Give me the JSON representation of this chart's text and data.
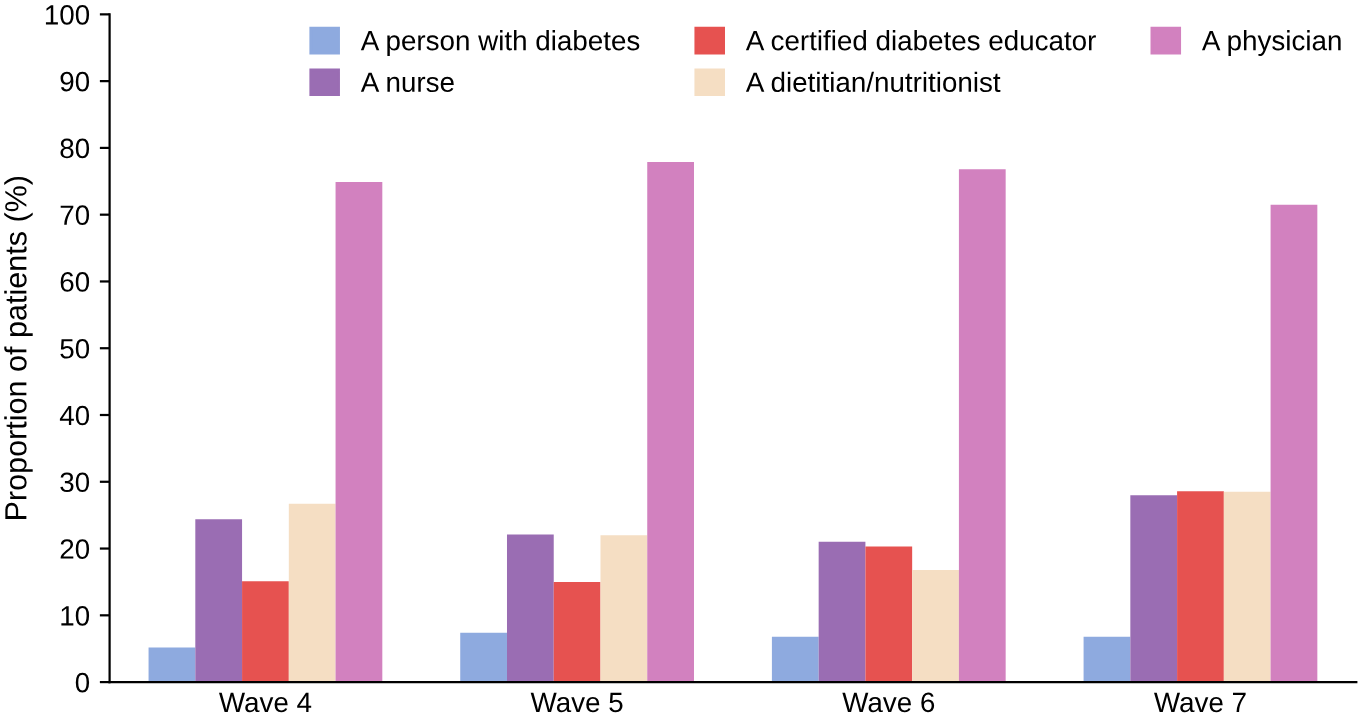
{
  "chart_data": {
    "type": "bar",
    "ylabel": "Proportion of patients (%)",
    "categories": [
      "Wave 4",
      "Wave 5",
      "Wave 6",
      "Wave 7"
    ],
    "series": [
      {
        "name": "A person with diabetes",
        "color": "#8eaadf",
        "values": [
          5.2,
          7.4,
          6.8,
          6.8
        ]
      },
      {
        "name": "A nurse",
        "color": "#9a6db3",
        "values": [
          24.4,
          22.1,
          21.0,
          28.0
        ]
      },
      {
        "name": "A certified diabetes educator",
        "color": "#e65250",
        "values": [
          15.1,
          15.0,
          20.3,
          28.6
        ]
      },
      {
        "name": "A dietitian/nutritionist",
        "color": "#f5dec3",
        "values": [
          26.7,
          22.0,
          16.8,
          28.5
        ]
      },
      {
        "name": "A physician",
        "color": "#d281bf",
        "values": [
          74.9,
          77.9,
          76.8,
          71.5
        ]
      }
    ],
    "ylim": [
      0,
      100
    ],
    "yticks": [
      0,
      10,
      20,
      30,
      40,
      50,
      60,
      70,
      80,
      90,
      100
    ],
    "grid": false,
    "legend": "top right"
  }
}
